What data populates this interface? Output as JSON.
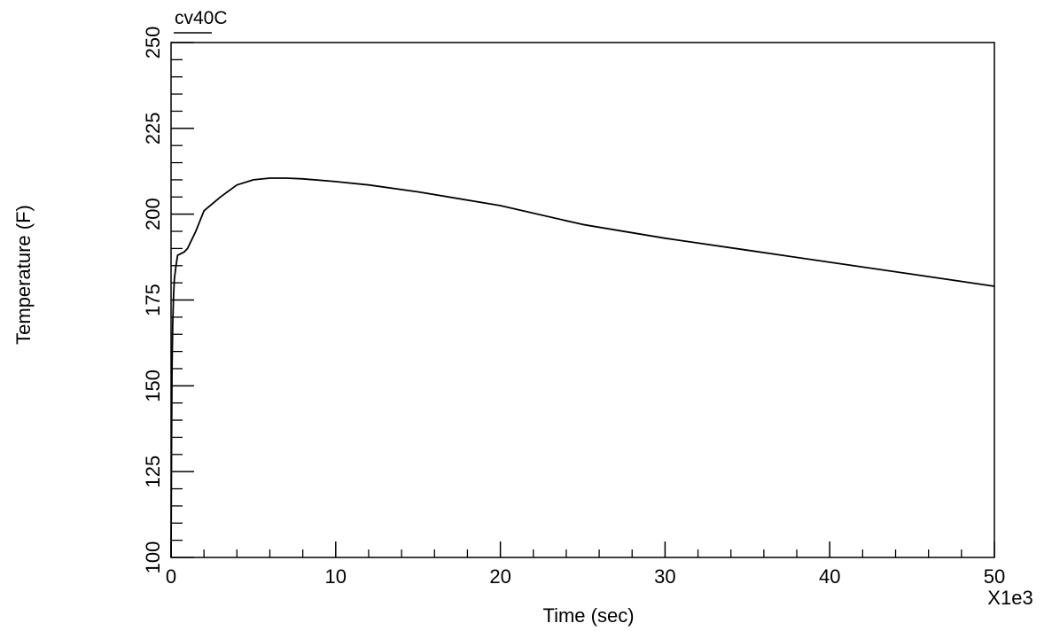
{
  "chart_data": {
    "type": "line",
    "xlabel": "Time (sec)",
    "ylabel": "Temperature (F)",
    "x_multiplier_label": "X1e3",
    "xlim": [
      0,
      50
    ],
    "ylim": [
      100,
      250
    ],
    "x_ticks": [
      0,
      10,
      20,
      30,
      40,
      50
    ],
    "y_ticks": [
      100,
      125,
      150,
      175,
      200,
      225,
      250
    ],
    "x_minor_step": 2,
    "y_minor_step": 5,
    "grid": false,
    "legend_position": "top-left",
    "series": [
      {
        "name": "cv40C",
        "color": "#000000",
        "x": [
          0,
          0.03,
          0.06,
          0.1,
          0.15,
          0.2,
          0.3,
          0.4,
          0.6,
          0.8,
          1.0,
          1.5,
          2.0,
          3.0,
          4.0,
          5.0,
          6.0,
          7.0,
          8.0,
          10.0,
          12.0,
          15.0,
          20.0,
          25.0,
          30.0,
          35.0,
          40.0,
          45.0,
          50.0
        ],
        "values": [
          100,
          135,
          155,
          168,
          176,
          181,
          185,
          188,
          188.5,
          189,
          190,
          195,
          201,
          205,
          208.5,
          210,
          210.5,
          210.5,
          210.3,
          209.5,
          208.5,
          206.5,
          202.5,
          197,
          193,
          189.5,
          186,
          182.5,
          179
        ]
      }
    ]
  }
}
